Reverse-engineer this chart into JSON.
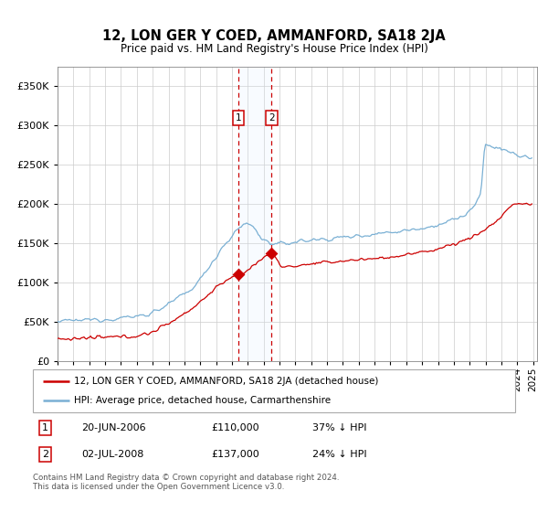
{
  "title": "12, LON GER Y COED, AMMANFORD, SA18 2JA",
  "subtitle": "Price paid vs. HM Land Registry's House Price Index (HPI)",
  "legend_line1": "12, LON GER Y COED, AMMANFORD, SA18 2JA (detached house)",
  "legend_line2": "HPI: Average price, detached house, Carmarthenshire",
  "sale1_date_str": "20-JUN-2006",
  "sale1_price": 110000,
  "sale1_pct": "37% ↓ HPI",
  "sale2_date_str": "02-JUL-2008",
  "sale2_price": 137000,
  "sale2_pct": "24% ↓ HPI",
  "footer": "Contains HM Land Registry data © Crown copyright and database right 2024.\nThis data is licensed under the Open Government Licence v3.0.",
  "red_color": "#cc0000",
  "blue_color": "#7ab0d4",
  "background_color": "#ffffff",
  "grid_color": "#cccccc",
  "shade_color": "#ddeeff",
  "dashed_color": "#cc0000",
  "ylim_max": 375000,
  "yticks": [
    0,
    50000,
    100000,
    150000,
    200000,
    250000,
    300000,
    350000
  ]
}
